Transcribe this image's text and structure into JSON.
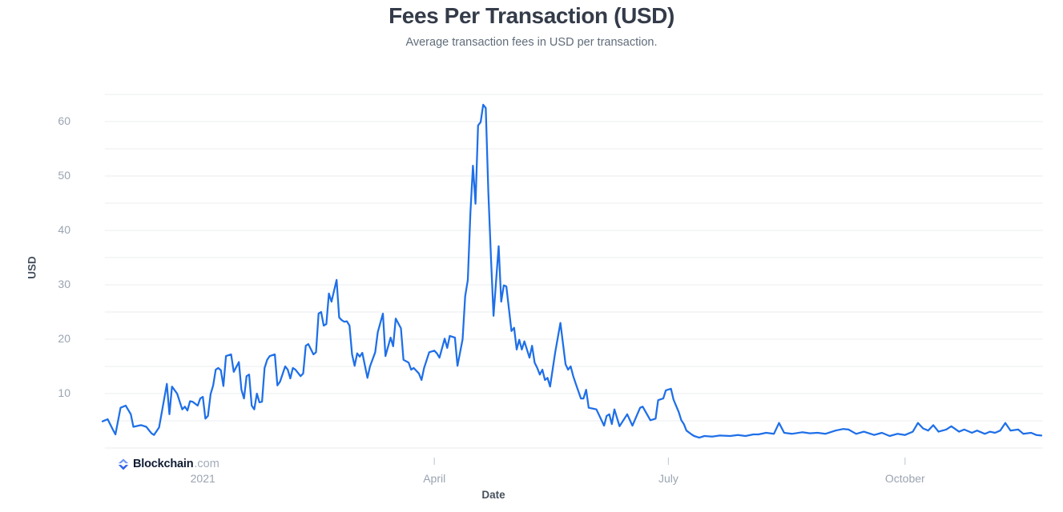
{
  "page": {
    "title": "Fees Per Transaction (USD)",
    "subtitle": "Average transaction fees in USD per transaction."
  },
  "logo": {
    "name": "Blockchain",
    "tld": ".com"
  },
  "colors": {
    "line": "#1e6fe8",
    "grid": "#e9ecef",
    "tick_mark": "#c7ced6",
    "tick_label": "#9aa4b1",
    "axis_label": "#47515e",
    "title": "#343b49",
    "subtitle": "#606c7a",
    "logo_navy": "#101b33",
    "logo_gray": "#a3abb8",
    "logo_blue_light": "#6d93f6",
    "logo_blue_dark": "#2f63ea"
  },
  "chart_data": {
    "type": "line",
    "title": "Fees Per Transaction (USD)",
    "subtitle": "Average transaction fees in USD per transaction.",
    "xlabel": "Date",
    "ylabel": "USD",
    "x_domain": [
      "2020-11-23",
      "2021-11-23"
    ],
    "days_total": 365,
    "ylim": [
      0,
      67
    ],
    "y_ticks": [
      10,
      20,
      30,
      40,
      50,
      60
    ],
    "y_grid": {
      "min": 0,
      "max": 65,
      "step": 5
    },
    "grid": "horizontal-only",
    "legend": "none",
    "x_ticks": [
      {
        "label": "2021",
        "day": 39,
        "tick": false
      },
      {
        "label": "April",
        "day": 129,
        "tick": true
      },
      {
        "label": "July",
        "day": 220,
        "tick": true
      },
      {
        "label": "October",
        "day": 312,
        "tick": true
      }
    ],
    "series": [
      {
        "name": "Fees Per Transaction (USD)",
        "color": "#1e6fe8",
        "points": [
          [
            0,
            4.9
          ],
          [
            2,
            5.3
          ],
          [
            4,
            3.4
          ],
          [
            5,
            2.5
          ],
          [
            7,
            7.4
          ],
          [
            9,
            7.8
          ],
          [
            11,
            6.2
          ],
          [
            12,
            3.9
          ],
          [
            15,
            4.2
          ],
          [
            17,
            3.9
          ],
          [
            19,
            2.7
          ],
          [
            20,
            2.4
          ],
          [
            22,
            3.8
          ],
          [
            23,
            6.5
          ],
          [
            25,
            11.8
          ],
          [
            26,
            6.2
          ],
          [
            27,
            11.3
          ],
          [
            29,
            10.0
          ],
          [
            31,
            7.1
          ],
          [
            32,
            7.6
          ],
          [
            33,
            6.9
          ],
          [
            34,
            8.6
          ],
          [
            35,
            8.5
          ],
          [
            37,
            7.8
          ],
          [
            38,
            9.1
          ],
          [
            39,
            9.4
          ],
          [
            40,
            5.4
          ],
          [
            41,
            5.9
          ],
          [
            42,
            9.9
          ],
          [
            43,
            11.5
          ],
          [
            44,
            14.4
          ],
          [
            45,
            14.7
          ],
          [
            46,
            14.3
          ],
          [
            47,
            11.4
          ],
          [
            48,
            16.9
          ],
          [
            50,
            17.2
          ],
          [
            51,
            14.0
          ],
          [
            53,
            15.8
          ],
          [
            54,
            10.7
          ],
          [
            55,
            9.1
          ],
          [
            56,
            13.2
          ],
          [
            57,
            13.5
          ],
          [
            58,
            7.8
          ],
          [
            59,
            7.1
          ],
          [
            60,
            10.0
          ],
          [
            61,
            8.4
          ],
          [
            62,
            8.5
          ],
          [
            63,
            14.7
          ],
          [
            64,
            16.2
          ],
          [
            65,
            16.9
          ],
          [
            67,
            17.2
          ],
          [
            68,
            11.5
          ],
          [
            69,
            12.2
          ],
          [
            71,
            15.0
          ],
          [
            72,
            14.4
          ],
          [
            73,
            12.8
          ],
          [
            74,
            14.7
          ],
          [
            75,
            14.4
          ],
          [
            77,
            13.2
          ],
          [
            78,
            13.7
          ],
          [
            79,
            18.8
          ],
          [
            80,
            19.1
          ],
          [
            82,
            17.2
          ],
          [
            83,
            17.6
          ],
          [
            84,
            24.7
          ],
          [
            85,
            25.0
          ],
          [
            86,
            22.5
          ],
          [
            87,
            22.8
          ],
          [
            88,
            28.4
          ],
          [
            89,
            26.9
          ],
          [
            91,
            30.9
          ],
          [
            92,
            24.0
          ],
          [
            93,
            23.5
          ],
          [
            94,
            23.2
          ],
          [
            95,
            23.3
          ],
          [
            96,
            22.5
          ],
          [
            97,
            17.2
          ],
          [
            98,
            15.1
          ],
          [
            99,
            17.4
          ],
          [
            100,
            16.8
          ],
          [
            101,
            17.5
          ],
          [
            103,
            12.9
          ],
          [
            104,
            15.0
          ],
          [
            106,
            17.6
          ],
          [
            107,
            21.3
          ],
          [
            109,
            24.7
          ],
          [
            110,
            16.9
          ],
          [
            112,
            20.3
          ],
          [
            113,
            18.7
          ],
          [
            114,
            23.8
          ],
          [
            116,
            22.0
          ],
          [
            117,
            16.2
          ],
          [
            119,
            15.7
          ],
          [
            120,
            14.4
          ],
          [
            121,
            14.7
          ],
          [
            123,
            13.7
          ],
          [
            124,
            12.5
          ],
          [
            125,
            14.7
          ],
          [
            127,
            17.6
          ],
          [
            129,
            17.9
          ],
          [
            130,
            17.4
          ],
          [
            131,
            16.6
          ],
          [
            133,
            20.1
          ],
          [
            134,
            18.4
          ],
          [
            135,
            20.6
          ],
          [
            137,
            20.3
          ],
          [
            138,
            15.1
          ],
          [
            140,
            20.0
          ],
          [
            141,
            27.9
          ],
          [
            142,
            30.9
          ],
          [
            143,
            43.1
          ],
          [
            144,
            51.9
          ],
          [
            145,
            44.9
          ],
          [
            146,
            59.3
          ],
          [
            147,
            59.9
          ],
          [
            148,
            63.1
          ],
          [
            149,
            62.5
          ],
          [
            150,
            47.1
          ],
          [
            151,
            35.0
          ],
          [
            152,
            24.3
          ],
          [
            154,
            37.1
          ],
          [
            155,
            26.9
          ],
          [
            156,
            29.9
          ],
          [
            157,
            29.7
          ],
          [
            159,
            21.5
          ],
          [
            160,
            22.1
          ],
          [
            161,
            18.1
          ],
          [
            162,
            19.9
          ],
          [
            163,
            18.1
          ],
          [
            164,
            19.6
          ],
          [
            166,
            16.6
          ],
          [
            167,
            18.8
          ],
          [
            168,
            15.7
          ],
          [
            169,
            14.7
          ],
          [
            170,
            13.5
          ],
          [
            171,
            14.4
          ],
          [
            172,
            12.5
          ],
          [
            173,
            12.9
          ],
          [
            174,
            11.3
          ],
          [
            176,
            17.6
          ],
          [
            178,
            23.0
          ],
          [
            180,
            15.4
          ],
          [
            181,
            14.4
          ],
          [
            182,
            15.0
          ],
          [
            183,
            13.2
          ],
          [
            184,
            11.8
          ],
          [
            186,
            9.1
          ],
          [
            187,
            9.1
          ],
          [
            188,
            10.7
          ],
          [
            189,
            7.4
          ],
          [
            191,
            7.2
          ],
          [
            192,
            7.1
          ],
          [
            195,
            4.1
          ],
          [
            196,
            5.9
          ],
          [
            197,
            6.2
          ],
          [
            198,
            4.4
          ],
          [
            199,
            7.1
          ],
          [
            201,
            4.0
          ],
          [
            204,
            6.2
          ],
          [
            206,
            4.1
          ],
          [
            209,
            7.4
          ],
          [
            210,
            7.6
          ],
          [
            213,
            5.1
          ],
          [
            215,
            5.4
          ],
          [
            216,
            8.8
          ],
          [
            218,
            9.1
          ],
          [
            219,
            10.6
          ],
          [
            221,
            10.9
          ],
          [
            222,
            8.9
          ],
          [
            224,
            6.6
          ],
          [
            225,
            5.1
          ],
          [
            226,
            4.4
          ],
          [
            227,
            3.2
          ],
          [
            229,
            2.5
          ],
          [
            230,
            2.2
          ],
          [
            232,
            1.9
          ],
          [
            234,
            2.2
          ],
          [
            237,
            2.1
          ],
          [
            240,
            2.3
          ],
          [
            244,
            2.2
          ],
          [
            247,
            2.4
          ],
          [
            250,
            2.2
          ],
          [
            253,
            2.5
          ],
          [
            255,
            2.5
          ],
          [
            258,
            2.8
          ],
          [
            261,
            2.6
          ],
          [
            263,
            4.6
          ],
          [
            265,
            2.8
          ],
          [
            268,
            2.6
          ],
          [
            272,
            2.9
          ],
          [
            275,
            2.7
          ],
          [
            278,
            2.8
          ],
          [
            281,
            2.6
          ],
          [
            285,
            3.2
          ],
          [
            288,
            3.5
          ],
          [
            290,
            3.4
          ],
          [
            293,
            2.6
          ],
          [
            296,
            3.0
          ],
          [
            300,
            2.4
          ],
          [
            303,
            2.8
          ],
          [
            306,
            2.2
          ],
          [
            309,
            2.6
          ],
          [
            312,
            2.4
          ],
          [
            315,
            3.0
          ],
          [
            317,
            4.6
          ],
          [
            319,
            3.6
          ],
          [
            321,
            3.2
          ],
          [
            323,
            4.2
          ],
          [
            325,
            3.0
          ],
          [
            328,
            3.4
          ],
          [
            330,
            4.0
          ],
          [
            333,
            3.0
          ],
          [
            335,
            3.4
          ],
          [
            338,
            2.8
          ],
          [
            340,
            3.2
          ],
          [
            343,
            2.6
          ],
          [
            345,
            3.0
          ],
          [
            347,
            2.8
          ],
          [
            349,
            3.2
          ],
          [
            351,
            4.6
          ],
          [
            353,
            3.2
          ],
          [
            356,
            3.4
          ],
          [
            358,
            2.6
          ],
          [
            361,
            2.8
          ],
          [
            363,
            2.4
          ],
          [
            365,
            2.3
          ]
        ]
      }
    ]
  }
}
